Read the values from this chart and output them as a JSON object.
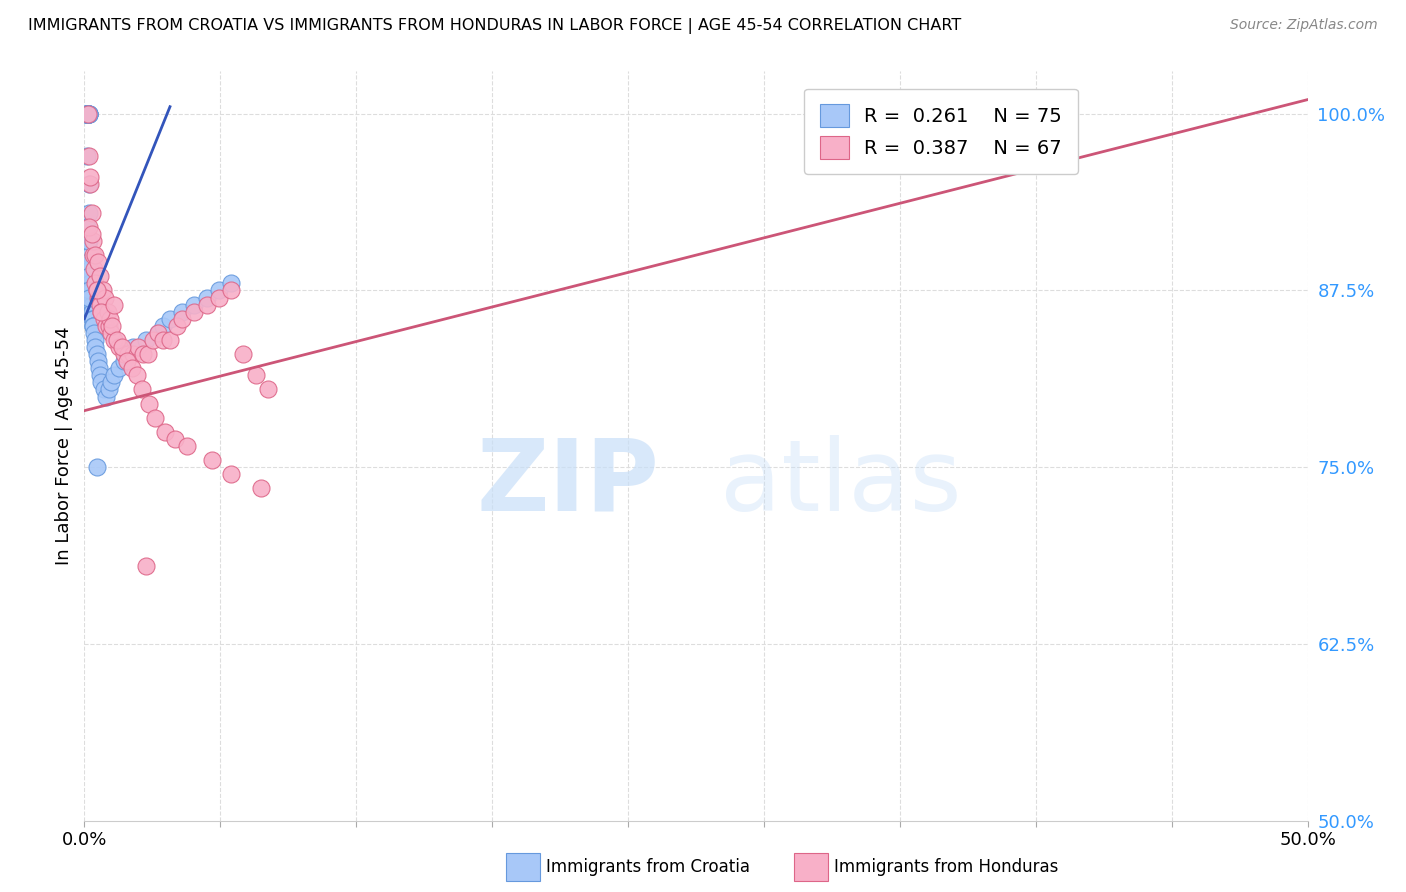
{
  "title": "IMMIGRANTS FROM CROATIA VS IMMIGRANTS FROM HONDURAS IN LABOR FORCE | AGE 45-54 CORRELATION CHART",
  "source": "Source: ZipAtlas.com",
  "ylabel": "In Labor Force | Age 45-54",
  "right_yticklabels": [
    "50.0%",
    "62.5%",
    "75.0%",
    "87.5%",
    "100.0%"
  ],
  "right_yticks": [
    50.0,
    62.5,
    75.0,
    87.5,
    100.0
  ],
  "croatia_color": "#a8c8f8",
  "honduras_color": "#f8b0c8",
  "croatia_edge": "#6699dd",
  "honduras_edge": "#dd6688",
  "trend_blue": "#3355bb",
  "trend_pink": "#cc5577",
  "xlim": [
    0.0,
    50.0
  ],
  "ylim": [
    50.0,
    103.0
  ],
  "grid_color": "#dddddd",
  "croatia_x": [
    0.05,
    0.08,
    0.1,
    0.1,
    0.12,
    0.12,
    0.13,
    0.14,
    0.15,
    0.15,
    0.16,
    0.17,
    0.18,
    0.18,
    0.19,
    0.2,
    0.2,
    0.21,
    0.21,
    0.22,
    0.22,
    0.23,
    0.23,
    0.24,
    0.24,
    0.25,
    0.25,
    0.26,
    0.27,
    0.28,
    0.28,
    0.29,
    0.3,
    0.3,
    0.31,
    0.32,
    0.33,
    0.34,
    0.35,
    0.36,
    0.37,
    0.4,
    0.42,
    0.45,
    0.5,
    0.55,
    0.6,
    0.65,
    0.7,
    0.8,
    0.9,
    1.0,
    1.1,
    1.2,
    1.4,
    1.6,
    1.8,
    2.0,
    2.5,
    3.0,
    3.2,
    3.5,
    4.0,
    4.5,
    5.0,
    5.5,
    6.0,
    0.09,
    0.11,
    0.13,
    0.15,
    0.17,
    0.19,
    0.21,
    0.5
  ],
  "croatia_y": [
    100.0,
    100.0,
    100.0,
    100.0,
    100.0,
    100.0,
    100.0,
    100.0,
    100.0,
    100.0,
    100.0,
    100.0,
    100.0,
    100.0,
    100.0,
    100.0,
    95.0,
    93.0,
    91.0,
    90.0,
    89.0,
    88.5,
    88.0,
    87.5,
    87.5,
    87.5,
    87.5,
    87.5,
    87.5,
    87.5,
    87.0,
    87.0,
    87.0,
    86.5,
    86.5,
    86.0,
    85.5,
    85.5,
    85.0,
    85.0,
    85.0,
    84.5,
    84.0,
    83.5,
    83.0,
    82.5,
    82.0,
    81.5,
    81.0,
    80.5,
    80.0,
    80.5,
    81.0,
    81.5,
    82.0,
    82.5,
    83.0,
    83.5,
    84.0,
    84.5,
    85.0,
    85.5,
    86.0,
    86.5,
    87.0,
    87.5,
    88.0,
    97.0,
    92.0,
    91.0,
    89.5,
    88.5,
    87.5,
    87.0,
    75.0
  ],
  "honduras_x": [
    0.15,
    0.2,
    0.25,
    0.3,
    0.35,
    0.4,
    0.45,
    0.5,
    0.55,
    0.6,
    0.65,
    0.7,
    0.8,
    0.9,
    1.0,
    1.1,
    1.2,
    1.4,
    1.6,
    1.8,
    2.0,
    2.2,
    2.4,
    2.6,
    2.8,
    3.0,
    3.2,
    3.5,
    3.8,
    4.0,
    4.5,
    5.0,
    5.5,
    6.0,
    6.5,
    7.0,
    7.5,
    0.25,
    0.35,
    0.45,
    0.55,
    0.65,
    0.75,
    0.85,
    0.95,
    1.05,
    1.15,
    1.35,
    1.55,
    1.75,
    1.95,
    2.15,
    2.35,
    2.65,
    2.9,
    3.3,
    3.7,
    4.2,
    5.2,
    6.0,
    7.2,
    0.2,
    0.3,
    0.5,
    0.7,
    1.2,
    2.5
  ],
  "honduras_y": [
    100.0,
    97.0,
    95.0,
    93.0,
    90.0,
    89.0,
    88.0,
    87.5,
    87.0,
    87.0,
    86.5,
    86.0,
    85.5,
    85.0,
    85.0,
    84.5,
    84.0,
    83.5,
    83.0,
    83.0,
    83.0,
    83.5,
    83.0,
    83.0,
    84.0,
    84.5,
    84.0,
    84.0,
    85.0,
    85.5,
    86.0,
    86.5,
    87.0,
    87.5,
    83.0,
    81.5,
    80.5,
    95.5,
    91.0,
    90.0,
    89.5,
    88.5,
    87.5,
    87.0,
    86.0,
    85.5,
    85.0,
    84.0,
    83.5,
    82.5,
    82.0,
    81.5,
    80.5,
    79.5,
    78.5,
    77.5,
    77.0,
    76.5,
    75.5,
    74.5,
    73.5,
    92.0,
    91.5,
    87.5,
    86.0,
    86.5,
    68.0
  ]
}
